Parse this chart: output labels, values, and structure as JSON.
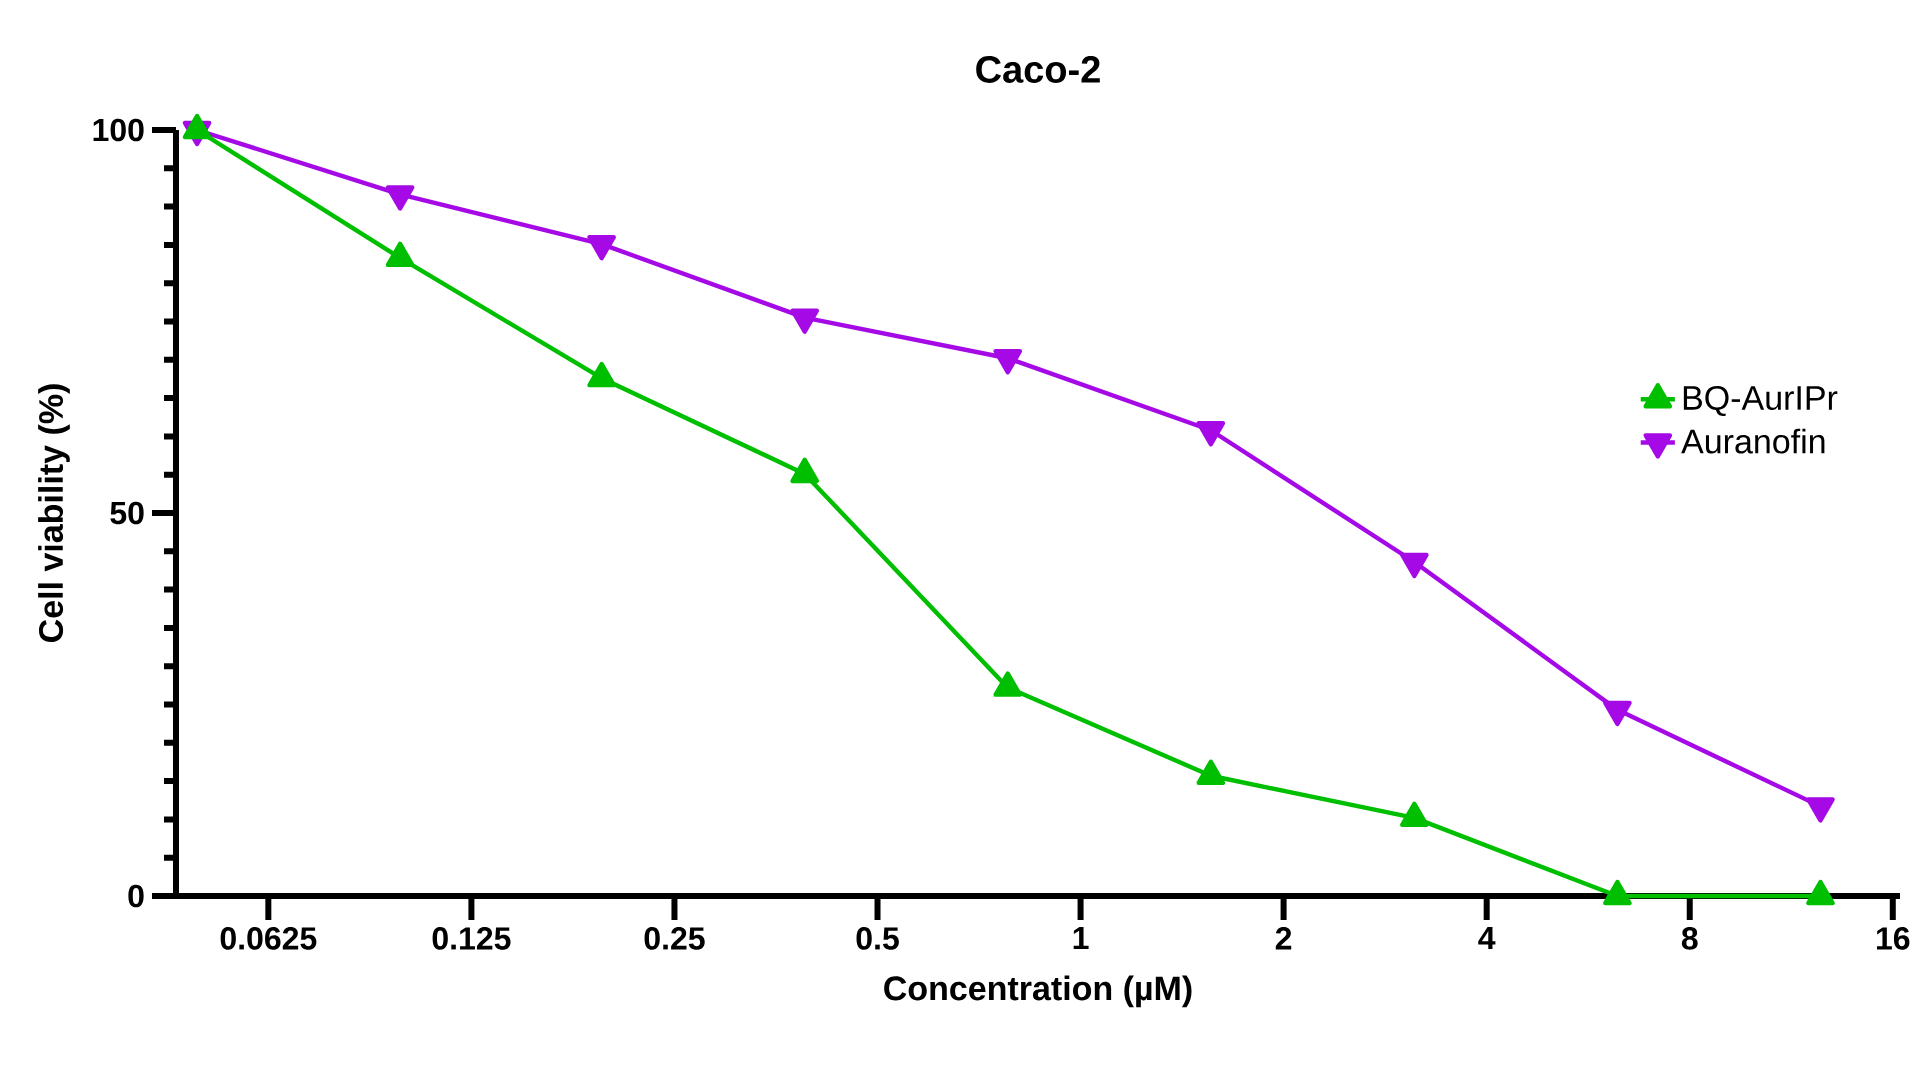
{
  "chart_data": {
    "type": "line",
    "title": "Caco-2",
    "xlabel": "Concentration (µM)",
    "ylabel": "Cell viability (%)",
    "log": "x",
    "x": [
      0.049,
      0.098,
      0.195,
      0.39,
      0.78,
      1.56,
      3.125,
      6.25,
      12.5
    ],
    "series": [
      {
        "name": "BQ-AurIPr",
        "color": "#00bf00",
        "marker": "triangle",
        "values": [
          100,
          83.3,
          67.6,
          55.1,
          27.2,
          15.7,
          10.2,
          0,
          0
        ]
      },
      {
        "name": "Auranofin",
        "color": "#a50ae6",
        "marker": "triangle-down",
        "values": [
          100,
          91.6,
          85.1,
          75.5,
          70.2,
          60.8,
          43.6,
          24.3,
          11.7
        ]
      }
    ],
    "xlim": [
      0.0456,
      16.4
    ],
    "ylim": [
      0,
      100
    ],
    "xticks": [
      0.0625,
      0.125,
      0.25,
      0.5,
      1,
      2,
      4,
      8,
      16
    ],
    "yticks": [
      0,
      50,
      100
    ],
    "grid": false,
    "legend": "right",
    "line_style": "solid"
  }
}
